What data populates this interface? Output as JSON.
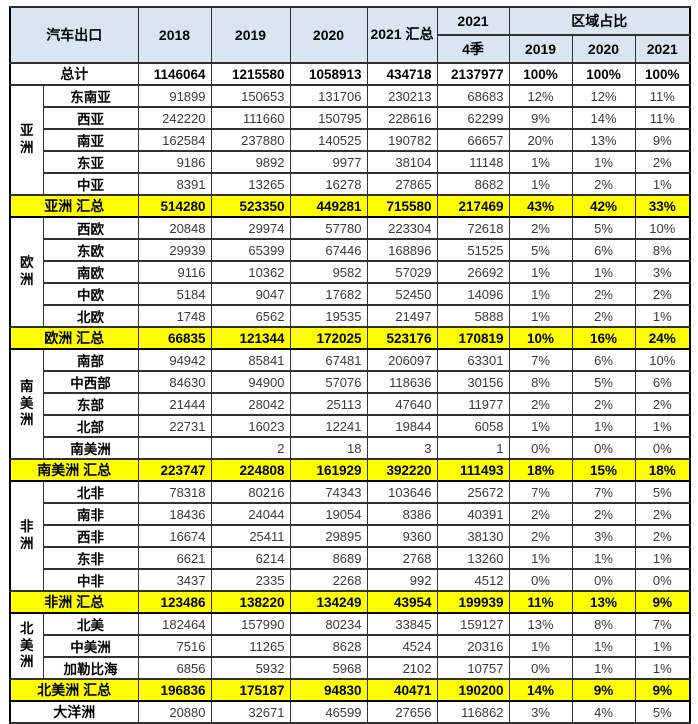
{
  "header": {
    "corner": "汽车出口",
    "years": [
      "2018",
      "2019",
      "2020"
    ],
    "total_2021": "2021 汇总",
    "y2021": "2021",
    "q4": "4季",
    "share_title": "区域占比",
    "share_years": [
      "2019",
      "2020",
      "2021"
    ]
  },
  "total_row": {
    "label": "总计",
    "values": [
      "1146064",
      "1215580",
      "1058913",
      "434718",
      "2137977",
      "100%",
      "100%",
      "100%"
    ]
  },
  "groups": [
    {
      "name": "亚洲",
      "rows": [
        {
          "label": "东南亚",
          "values": [
            "91899",
            "150653",
            "131706",
            "230213",
            "68683",
            "12%",
            "12%",
            "11%"
          ]
        },
        {
          "label": "西亚",
          "values": [
            "242220",
            "111660",
            "150795",
            "228616",
            "62299",
            "9%",
            "14%",
            "11%"
          ]
        },
        {
          "label": "南亚",
          "values": [
            "162584",
            "237880",
            "140525",
            "190782",
            "66657",
            "20%",
            "13%",
            "9%"
          ]
        },
        {
          "label": "东亚",
          "values": [
            "9186",
            "9892",
            "9977",
            "38104",
            "11148",
            "1%",
            "1%",
            "2%"
          ]
        },
        {
          "label": "中亚",
          "values": [
            "8391",
            "13265",
            "16278",
            "27865",
            "8682",
            "1%",
            "2%",
            "1%"
          ]
        }
      ],
      "summary": {
        "label": "亚洲 汇总",
        "values": [
          "514280",
          "523350",
          "449281",
          "715580",
          "217469",
          "43%",
          "42%",
          "33%"
        ]
      }
    },
    {
      "name": "欧洲",
      "rows": [
        {
          "label": "西欧",
          "values": [
            "20848",
            "29974",
            "57780",
            "223304",
            "72618",
            "2%",
            "5%",
            "10%"
          ]
        },
        {
          "label": "东欧",
          "values": [
            "29939",
            "65399",
            "67446",
            "168896",
            "51525",
            "5%",
            "6%",
            "8%"
          ]
        },
        {
          "label": "南欧",
          "values": [
            "9116",
            "10362",
            "9582",
            "57029",
            "26692",
            "1%",
            "1%",
            "3%"
          ]
        },
        {
          "label": "中欧",
          "values": [
            "5184",
            "9047",
            "17682",
            "52450",
            "14096",
            "1%",
            "2%",
            "2%"
          ]
        },
        {
          "label": "北欧",
          "values": [
            "1748",
            "6562",
            "19535",
            "21497",
            "5888",
            "1%",
            "2%",
            "1%"
          ]
        }
      ],
      "summary": {
        "label": "欧洲 汇总",
        "values": [
          "66835",
          "121344",
          "172025",
          "523176",
          "170819",
          "10%",
          "16%",
          "24%"
        ]
      }
    },
    {
      "name": "南美洲",
      "rows": [
        {
          "label": "南部",
          "values": [
            "94942",
            "85841",
            "67481",
            "206097",
            "63301",
            "7%",
            "6%",
            "10%"
          ]
        },
        {
          "label": "中西部",
          "values": [
            "84630",
            "94900",
            "57076",
            "118636",
            "30156",
            "8%",
            "5%",
            "6%"
          ]
        },
        {
          "label": "东部",
          "values": [
            "21444",
            "28042",
            "25113",
            "47640",
            "11977",
            "2%",
            "2%",
            "2%"
          ]
        },
        {
          "label": "北部",
          "values": [
            "22731",
            "16023",
            "12241",
            "19844",
            "6058",
            "1%",
            "1%",
            "1%"
          ]
        },
        {
          "label": "南美洲",
          "values": [
            "",
            "2",
            "18",
            "3",
            "1",
            "0%",
            "0%",
            "0%"
          ]
        }
      ],
      "summary": {
        "label": "南美洲 汇总",
        "values": [
          "223747",
          "224808",
          "161929",
          "392220",
          "111493",
          "18%",
          "15%",
          "18%"
        ]
      }
    },
    {
      "name": "非洲",
      "rows": [
        {
          "label": "北非",
          "values": [
            "78318",
            "80216",
            "74343",
            "103646",
            "25672",
            "7%",
            "7%",
            "5%"
          ]
        },
        {
          "label": "南非",
          "values": [
            "18436",
            "24044",
            "19054",
            "8386",
            "40391",
            "2%",
            "2%",
            "2%"
          ]
        },
        {
          "label": "西非",
          "values": [
            "16674",
            "25411",
            "29895",
            "9360",
            "38130",
            "2%",
            "3%",
            "2%"
          ]
        },
        {
          "label": "东非",
          "values": [
            "6621",
            "6214",
            "8689",
            "2768",
            "13260",
            "1%",
            "1%",
            "1%"
          ]
        },
        {
          "label": "中非",
          "values": [
            "3437",
            "2335",
            "2268",
            "992",
            "4512",
            "0%",
            "0%",
            "0%"
          ]
        }
      ],
      "summary": {
        "label": "非洲 汇总",
        "values": [
          "123486",
          "138220",
          "134249",
          "43954",
          "199939",
          "11%",
          "13%",
          "9%"
        ]
      }
    },
    {
      "name": "北美洲",
      "rows": [
        {
          "label": "北美",
          "values": [
            "182464",
            "157990",
            "80234",
            "33845",
            "159127",
            "13%",
            "8%",
            "7%"
          ]
        },
        {
          "label": "中美洲",
          "values": [
            "7516",
            "11265",
            "8628",
            "4524",
            "20316",
            "1%",
            "1%",
            "1%"
          ]
        },
        {
          "label": "加勒比海",
          "values": [
            "6856",
            "5932",
            "5968",
            "2102",
            "10757",
            "0%",
            "1%",
            "1%"
          ]
        }
      ],
      "summary": {
        "label": "北美洲 汇总",
        "values": [
          "196836",
          "175187",
          "94830",
          "40471",
          "190200",
          "14%",
          "9%",
          "9%"
        ]
      }
    }
  ],
  "oceania": {
    "label": "大洋洲",
    "values": [
      "20880",
      "32671",
      "46599",
      "27656",
      "116862",
      "3%",
      "4%",
      "5%"
    ]
  },
  "colors": {
    "header_bg": "#d9e6f2",
    "summary_bg": "#ffff00",
    "grid": "#303030"
  }
}
